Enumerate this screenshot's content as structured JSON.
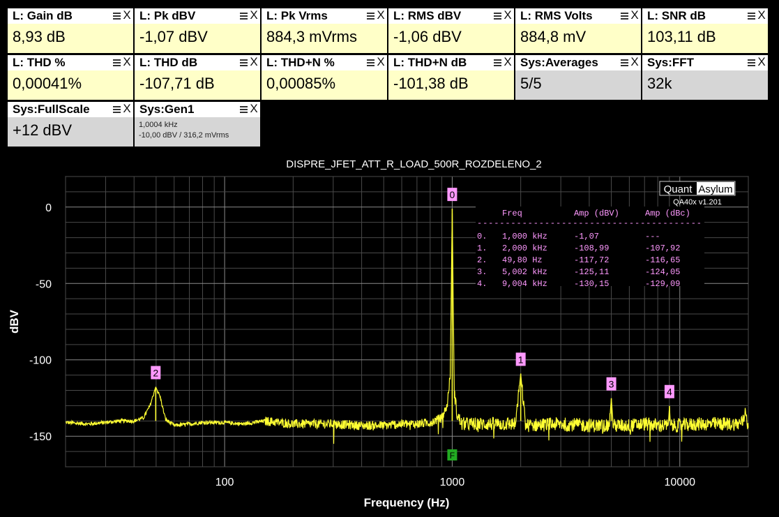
{
  "tiles": [
    {
      "title": "L: Gain dB",
      "value": "8,93 dB",
      "sys": false
    },
    {
      "title": "L: Pk dBV",
      "value": "-1,07 dBV",
      "sys": false
    },
    {
      "title": "L: Pk Vrms",
      "value": "884,3 mVrms",
      "sys": false
    },
    {
      "title": "L: RMS dBV",
      "value": "-1,06 dBV",
      "sys": false
    },
    {
      "title": "L: RMS Volts",
      "value": "884,8 mV",
      "sys": false
    },
    {
      "title": "L: SNR dB",
      "value": "103,11 dB",
      "sys": false
    },
    {
      "title": "L: THD %",
      "value": "0,00041%",
      "sys": false
    },
    {
      "title": "L: THD dB",
      "value": "-107,71 dB",
      "sys": false
    },
    {
      "title": "L: THD+N %",
      "value": "0,00085%",
      "sys": false
    },
    {
      "title": "L: THD+N dB",
      "value": "-101,38 dB",
      "sys": false
    },
    {
      "title": "Sys:Averages",
      "value": "5/5",
      "sys": true
    },
    {
      "title": "Sys:FFT",
      "value": "32k",
      "sys": true
    },
    {
      "title": "Sys:FullScale",
      "value": "+12 dBV",
      "sys": true
    }
  ],
  "gen_tile": {
    "title": "Sys:Gen1",
    "line1": "1,0004 kHz",
    "line2": "-10,00 dBV  / 316,2 mVrms"
  },
  "tile_icons": {
    "menu": "menu-icon",
    "close": "close-icon",
    "close_glyph": "X"
  },
  "colors": {
    "trace": "#ffff33",
    "marker": "#ff99ff",
    "table_text": "#ff99ff",
    "f_marker": "#22aa22",
    "value_bg": "#ffffc8",
    "sys_bg": "#d6d6d6"
  },
  "chart_data": {
    "type": "line",
    "title": "DISPRE_JFET_ATT_R_LOAD_500R_ROZDELENO_2",
    "xlabel": "Frequency (Hz)",
    "ylabel": "dBV",
    "x_scale": "log",
    "xlim": [
      20,
      20000
    ],
    "ylim": [
      -170,
      20
    ],
    "x_ticks": [
      100,
      1000,
      10000
    ],
    "x_tick_labels": [
      "100",
      "1000",
      "10000"
    ],
    "y_ticks": [
      0,
      -50,
      -100,
      -150
    ],
    "y_tick_labels": [
      "0",
      "-50",
      "-100",
      "-150"
    ],
    "grid": true,
    "series": [
      {
        "x": [
          20,
          25,
          30,
          35,
          40,
          44,
          47,
          49.8,
          52,
          55,
          60,
          70,
          80,
          100,
          120,
          150,
          200,
          300,
          400,
          500,
          600,
          700,
          800,
          900,
          950,
          980,
          1000,
          1020,
          1050,
          1100,
          1200,
          1500,
          1900,
          2000,
          2100,
          3000,
          4000,
          4900,
          5002,
          5100,
          6000,
          7000,
          8000,
          8900,
          9004,
          9100,
          10000,
          12000,
          15000,
          18000,
          19000,
          19500,
          20000
        ],
        "y": [
          -141,
          -142,
          -141,
          -140,
          -140,
          -138,
          -130,
          -117.7,
          -124,
          -139,
          -143,
          -142,
          -141,
          -141,
          -142,
          -140,
          -142,
          -142,
          -143,
          -143,
          -142,
          -142,
          -141,
          -138,
          -130,
          -110,
          -1.07,
          -120,
          -136,
          -142,
          -142,
          -142,
          -142,
          -109,
          -143,
          -142,
          -143,
          -143,
          -125.1,
          -143,
          -143,
          -142,
          -143,
          -143,
          -130.2,
          -143,
          -143,
          -142,
          -142,
          -142,
          -140,
          -132,
          -146
        ]
      }
    ],
    "markers": [
      {
        "label": "0",
        "x": 1000,
        "y": -1.07
      },
      {
        "label": "1",
        "x": 2000,
        "y": -108.99
      },
      {
        "label": "2",
        "x": 49.8,
        "y": -117.72
      },
      {
        "label": "3",
        "x": 5002,
        "y": -125.11
      },
      {
        "label": "4",
        "x": 9004,
        "y": -130.15
      }
    ],
    "f_marker": {
      "label": "F",
      "x": 1000
    },
    "harmonic_table": {
      "headers": [
        "Freq",
        "Amp (dBV)",
        "Amp (dBc)"
      ],
      "separator": "----------------------------------------",
      "rows": [
        [
          "0.",
          "1,000 kHz",
          "-1,07",
          "---"
        ],
        [
          "1.",
          "2,000 kHz",
          "-108,99",
          "-107,92"
        ],
        [
          "2.",
          "49,80 Hz",
          "-117,72",
          "-116,65"
        ],
        [
          "3.",
          "5,002 kHz",
          "-125,11",
          "-124,05"
        ],
        [
          "4.",
          "9,004 kHz",
          "-130,15",
          "-129,09"
        ]
      ]
    },
    "logo": {
      "left": "Quant",
      "right": "Asylum",
      "version": "QA40x v1.201"
    }
  }
}
